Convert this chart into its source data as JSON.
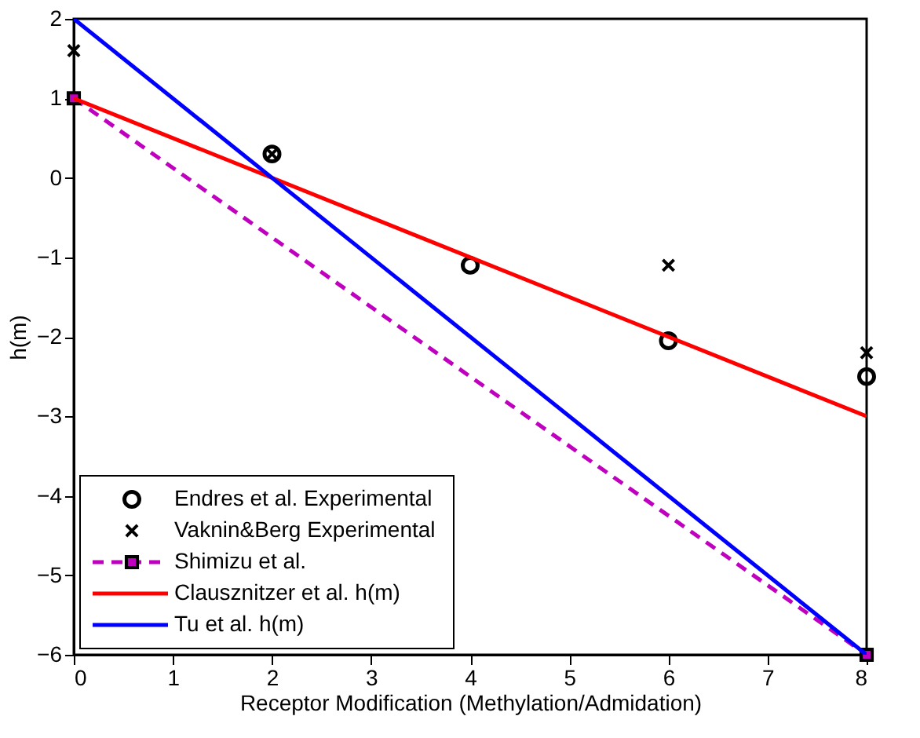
{
  "chart_data": {
    "type": "line",
    "xlabel": "Receptor Modification (Methylation/Admidation)",
    "ylabel": "h(m)",
    "xlim": [
      0,
      8
    ],
    "ylim": [
      -6,
      2
    ],
    "xticks": [
      0,
      1,
      2,
      3,
      4,
      5,
      6,
      7,
      8
    ],
    "yticks": [
      -6,
      -5,
      -4,
      -3,
      -2,
      -1,
      0,
      1,
      2
    ],
    "grid": false,
    "legend": "bottom left",
    "series": [
      {
        "name": "Endres et al. Experimental",
        "type": "scatter",
        "marker": "circle",
        "color": "#000000",
        "x": [
          2,
          4,
          6,
          8
        ],
        "values": [
          0.3,
          -1.1,
          -2.05,
          -2.5
        ]
      },
      {
        "name": "Vaknin&Berg Experimental",
        "type": "scatter",
        "marker": "cross",
        "color": "#000000",
        "x": [
          0,
          2,
          6,
          8
        ],
        "values": [
          1.6,
          0.3,
          -1.1,
          -2.2
        ]
      },
      {
        "name": "Shimizu et al.",
        "type": "line",
        "marker": "square",
        "line_style": "dashed",
        "color": "#bf00bf",
        "x": [
          0,
          8
        ],
        "values": [
          1,
          -6
        ]
      },
      {
        "name": "Clausznitzer et al. h(m)",
        "type": "line",
        "marker": "none",
        "line_style": "solid",
        "color": "#ff0000",
        "x": [
          0,
          8
        ],
        "values": [
          1,
          -3
        ]
      },
      {
        "name": "Tu et al. h(m)",
        "type": "line",
        "marker": "none",
        "line_style": "solid",
        "color": "#0000ff",
        "x": [
          0,
          8
        ],
        "values": [
          2,
          -6
        ]
      }
    ]
  }
}
